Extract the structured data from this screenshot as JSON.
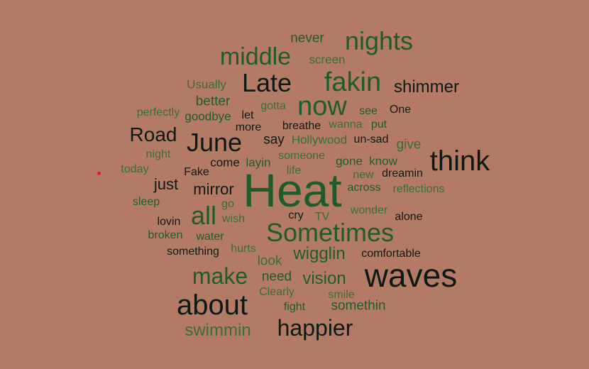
{
  "colors": {
    "background": "#b37b66",
    "dark": "#0d1a14",
    "green": "#1f5c2b",
    "light": "#3a6f2e",
    "dot": "#e0201a"
  },
  "words": [
    {
      "text": "Heat",
      "c": "green"
    },
    {
      "text": "waves",
      "c": "dark"
    },
    {
      "text": "about",
      "c": "dark"
    },
    {
      "text": "think",
      "c": "dark"
    },
    {
      "text": "Sometimes",
      "c": "green"
    },
    {
      "text": "nights",
      "c": "green"
    },
    {
      "text": "fakin",
      "c": "green"
    },
    {
      "text": "now",
      "c": "green"
    },
    {
      "text": "Late",
      "c": "dark"
    },
    {
      "text": "June",
      "c": "dark"
    },
    {
      "text": "all",
      "c": "green"
    },
    {
      "text": "make",
      "c": "green"
    },
    {
      "text": "middle",
      "c": "green"
    },
    {
      "text": "happier",
      "c": "dark"
    },
    {
      "text": "Road",
      "c": "dark"
    },
    {
      "text": "shimmer",
      "c": "dark"
    },
    {
      "text": "swimmin",
      "c": "light"
    },
    {
      "text": "vision",
      "c": "green"
    },
    {
      "text": "wigglin",
      "c": "green"
    },
    {
      "text": "mirror",
      "c": "dark"
    },
    {
      "text": "just",
      "c": "dark"
    },
    {
      "text": "somethin",
      "c": "green"
    },
    {
      "text": "never",
      "c": "green"
    },
    {
      "text": "better",
      "c": "green"
    },
    {
      "text": "need",
      "c": "green"
    },
    {
      "text": "give",
      "c": "light"
    },
    {
      "text": "say",
      "c": "dark"
    },
    {
      "text": "know",
      "c": "green"
    },
    {
      "text": "look",
      "c": "light"
    },
    {
      "text": "Usually",
      "c": "light"
    },
    {
      "text": "screen",
      "c": "light"
    },
    {
      "text": "gotta",
      "c": "light"
    },
    {
      "text": "perfectly",
      "c": "light"
    },
    {
      "text": "goodbye",
      "c": "green"
    },
    {
      "text": "let",
      "c": "dark"
    },
    {
      "text": "see",
      "c": "green"
    },
    {
      "text": "One",
      "c": "dark"
    },
    {
      "text": "more",
      "c": "dark"
    },
    {
      "text": "breathe",
      "c": "dark"
    },
    {
      "text": "wanna",
      "c": "light"
    },
    {
      "text": "put",
      "c": "green"
    },
    {
      "text": "Hollywood",
      "c": "light"
    },
    {
      "text": "un-sad",
      "c": "dark"
    },
    {
      "text": "night",
      "c": "light"
    },
    {
      "text": "someone",
      "c": "light"
    },
    {
      "text": "come",
      "c": "dark"
    },
    {
      "text": "layin",
      "c": "green"
    },
    {
      "text": "gone",
      "c": "green"
    },
    {
      "text": "today",
      "c": "light"
    },
    {
      "text": "Fake",
      "c": "dark"
    },
    {
      "text": "life",
      "c": "light"
    },
    {
      "text": "new",
      "c": "light"
    },
    {
      "text": "dreamin",
      "c": "dark"
    },
    {
      "text": "across",
      "c": "green"
    },
    {
      "text": "reflections",
      "c": "light"
    },
    {
      "text": "sleep",
      "c": "green"
    },
    {
      "text": "go",
      "c": "light"
    },
    {
      "text": "wonder",
      "c": "light"
    },
    {
      "text": "cry",
      "c": "dark"
    },
    {
      "text": "lovin",
      "c": "dark"
    },
    {
      "text": "wish",
      "c": "light"
    },
    {
      "text": "TV",
      "c": "light"
    },
    {
      "text": "alone",
      "c": "dark"
    },
    {
      "text": "broken",
      "c": "green"
    },
    {
      "text": "water",
      "c": "green"
    },
    {
      "text": "something",
      "c": "dark"
    },
    {
      "text": "hurts",
      "c": "light"
    },
    {
      "text": "comfortable",
      "c": "dark"
    },
    {
      "text": "Clearly",
      "c": "light"
    },
    {
      "text": "smile",
      "c": "light"
    },
    {
      "text": "fight",
      "c": "green"
    }
  ]
}
